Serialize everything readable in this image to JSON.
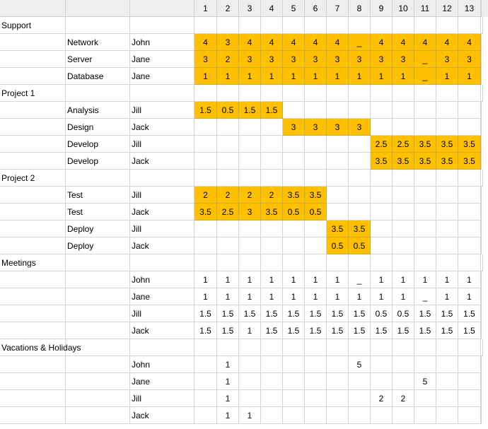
{
  "header": [
    "1",
    "2",
    "3",
    "4",
    "5",
    "6",
    "7",
    "8",
    "9",
    "10",
    "11",
    "12",
    "13"
  ],
  "colors": {
    "highlight": "#ffc000",
    "grid": "#d4d4d4",
    "header_bg": "#ededed"
  },
  "rows": [
    {
      "group": "Support"
    },
    {
      "task": "Network",
      "person": "John",
      "values": [
        "4",
        "3",
        "4",
        "4",
        "4",
        "4",
        "4",
        "_",
        "4",
        "4",
        "4",
        "4",
        "4"
      ],
      "highlight": true
    },
    {
      "task": "Server",
      "person": "Jane",
      "values": [
        "3",
        "2",
        "3",
        "3",
        "3",
        "3",
        "3",
        "3",
        "3",
        "3",
        "_",
        "3",
        "3"
      ],
      "highlight": true
    },
    {
      "task": "Database",
      "person": "Jane",
      "values": [
        "1",
        "1",
        "1",
        "1",
        "1",
        "1",
        "1",
        "1",
        "1",
        "1",
        "_",
        "1",
        "1"
      ],
      "highlight": true
    },
    {
      "group": "Project 1"
    },
    {
      "task": "Analysis",
      "person": "Jill",
      "values": [
        "1.5",
        "0.5",
        "1.5",
        "1.5",
        "",
        "",
        "",
        "",
        "",
        "",
        "",
        "",
        ""
      ],
      "highlight": true
    },
    {
      "task": "Design",
      "person": "Jack",
      "values": [
        "",
        "",
        "",
        "",
        "3",
        "3",
        "3",
        "3",
        "",
        "",
        "",
        "",
        ""
      ],
      "highlight": true
    },
    {
      "task": "Develop",
      "person": "Jill",
      "values": [
        "",
        "",
        "",
        "",
        "",
        "",
        "",
        "",
        "2.5",
        "2.5",
        "3.5",
        "3.5",
        "3.5"
      ],
      "highlight": true
    },
    {
      "task": "Develop",
      "person": "Jack",
      "values": [
        "",
        "",
        "",
        "",
        "",
        "",
        "",
        "",
        "3.5",
        "3.5",
        "3.5",
        "3.5",
        "3.5"
      ],
      "highlight": true
    },
    {
      "group": "Project 2"
    },
    {
      "task": "Test",
      "person": "Jill",
      "values": [
        "2",
        "2",
        "2",
        "2",
        "3.5",
        "3.5",
        "",
        "",
        "",
        "",
        "",
        "",
        ""
      ],
      "highlight": true
    },
    {
      "task": "Test",
      "person": "Jack",
      "values": [
        "3.5",
        "2.5",
        "3",
        "3.5",
        "0.5",
        "0.5",
        "",
        "",
        "",
        "",
        "",
        "",
        ""
      ],
      "highlight": true
    },
    {
      "task": "Deploy",
      "person": "Jill",
      "values": [
        "",
        "",
        "",
        "",
        "",
        "",
        "3.5",
        "3.5",
        "",
        "",
        "",
        "",
        ""
      ],
      "highlight": true
    },
    {
      "task": "Deploy",
      "person": "Jack",
      "values": [
        "",
        "",
        "",
        "",
        "",
        "",
        "0.5",
        "0.5",
        "",
        "",
        "",
        "",
        ""
      ],
      "highlight": true
    },
    {
      "group": "Meetings"
    },
    {
      "task": "",
      "person": "John",
      "values": [
        "1",
        "1",
        "1",
        "1",
        "1",
        "1",
        "1",
        "_",
        "1",
        "1",
        "1",
        "1",
        "1"
      ],
      "highlight": false
    },
    {
      "task": "",
      "person": "Jane",
      "values": [
        "1",
        "1",
        "1",
        "1",
        "1",
        "1",
        "1",
        "1",
        "1",
        "1",
        "_",
        "1",
        "1"
      ],
      "highlight": false
    },
    {
      "task": "",
      "person": "Jill",
      "values": [
        "1.5",
        "1.5",
        "1.5",
        "1.5",
        "1.5",
        "1.5",
        "1.5",
        "1.5",
        "0.5",
        "0.5",
        "1.5",
        "1.5",
        "1.5"
      ],
      "highlight": false
    },
    {
      "task": "",
      "person": "Jack",
      "values": [
        "1.5",
        "1.5",
        "1",
        "1.5",
        "1.5",
        "1.5",
        "1.5",
        "1.5",
        "1.5",
        "1.5",
        "1.5",
        "1.5",
        "1.5"
      ],
      "highlight": false
    },
    {
      "group": "Vacations & Holidays"
    },
    {
      "task": "",
      "person": "John",
      "values": [
        "",
        "1",
        "",
        "",
        "",
        "",
        "",
        "5",
        "",
        "",
        "",
        "",
        ""
      ],
      "highlight": false
    },
    {
      "task": "",
      "person": "Jane",
      "values": [
        "",
        "1",
        "",
        "",
        "",
        "",
        "",
        "",
        "",
        "",
        "5",
        "",
        ""
      ],
      "highlight": false
    },
    {
      "task": "",
      "person": "Jill",
      "values": [
        "",
        "1",
        "",
        "",
        "",
        "",
        "",
        "",
        "2",
        "2",
        "",
        "",
        ""
      ],
      "highlight": false
    },
    {
      "task": "",
      "person": "Jack",
      "values": [
        "",
        "1",
        "1",
        "",
        "",
        "",
        "",
        "",
        "",
        "",
        "",
        "",
        ""
      ],
      "highlight": false
    }
  ]
}
